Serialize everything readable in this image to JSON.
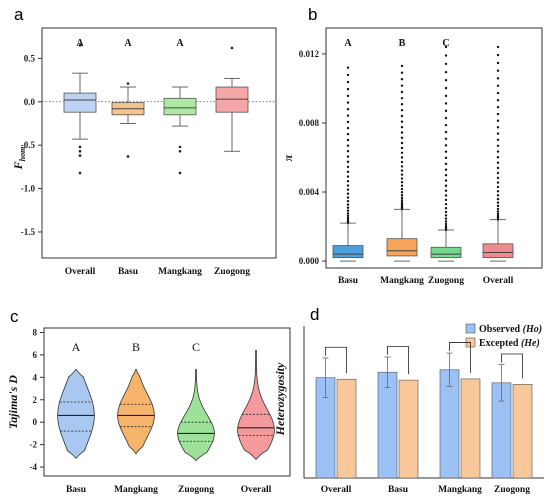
{
  "panels": [
    "a",
    "b",
    "c",
    "d"
  ],
  "chart_data": [
    {
      "panel": "a",
      "type": "box",
      "ylabel": "F",
      "ylabel_sub": "hom",
      "categories": [
        "Overall",
        "Basu",
        "Mangkang",
        "Zuogong"
      ],
      "colors": [
        "#bcd3f2",
        "#f6c48c",
        "#aee9a2",
        "#f5a7a8"
      ],
      "ylim": [
        -1.8,
        0.85
      ],
      "yticks": [
        0.5,
        0.0,
        -0.5,
        -1.0,
        -1.5
      ],
      "ytick_labels": [
        "0.5",
        "0.0",
        "-0.5",
        "-1.0",
        "-1.5"
      ],
      "reference_line": 0.0,
      "significance": [
        "A",
        "A",
        "A",
        ""
      ],
      "boxes": [
        {
          "min": -0.43,
          "q1": -0.12,
          "median": 0.02,
          "q3": 0.1,
          "max": 0.33,
          "outliers": [
            0.65,
            -0.52,
            -0.57,
            -0.62,
            -0.82
          ]
        },
        {
          "min": -0.25,
          "q1": -0.15,
          "median": -0.08,
          "q3": -0.01,
          "max": 0.17,
          "outliers": [
            0.21,
            -0.63
          ]
        },
        {
          "min": -0.28,
          "q1": -0.15,
          "median": -0.07,
          "q3": 0.04,
          "max": 0.17,
          "outliers": [
            -0.52,
            -0.57,
            -0.82
          ]
        },
        {
          "min": -0.57,
          "q1": -0.12,
          "median": 0.03,
          "q3": 0.17,
          "max": 0.27,
          "outliers": [
            0.62
          ]
        }
      ]
    },
    {
      "panel": "b",
      "type": "box",
      "ylabel": "π",
      "categories": [
        "Basu",
        "Mangkang",
        "Zuogong",
        "Overall"
      ],
      "colors": [
        "#4e9fe0",
        "#f6a55a",
        "#74d98c",
        "#f08a8c"
      ],
      "ylim": [
        -0.0004,
        0.0135
      ],
      "yticks": [
        0.0,
        0.004,
        0.008,
        0.012
      ],
      "ytick_labels": [
        "0.000",
        "0.004",
        "0.008",
        "0.012"
      ],
      "significance": [
        "A",
        "B",
        "C",
        ""
      ],
      "boxes": [
        {
          "min": 0.0,
          "q1": 0.0002,
          "median": 0.0004,
          "q3": 0.0009,
          "max": 0.0022,
          "outlier_top": 0.0112
        },
        {
          "min": 0.0,
          "q1": 0.0003,
          "median": 0.0006,
          "q3": 0.0013,
          "max": 0.003,
          "outlier_top": 0.0113
        },
        {
          "min": 0.0,
          "q1": 0.0002,
          "median": 0.0004,
          "q3": 0.0008,
          "max": 0.0018,
          "outlier_top": 0.0124
        },
        {
          "min": 0.0,
          "q1": 0.0002,
          "median": 0.0005,
          "q3": 0.001,
          "max": 0.0024,
          "outlier_top": 0.0124
        }
      ]
    },
    {
      "panel": "c",
      "type": "violin",
      "ylabel": "Tajima's D",
      "categories": [
        "Basu",
        "Mangkang",
        "Zuogong",
        "Overall"
      ],
      "colors": [
        "#a8c8f0",
        "#f6b36b",
        "#9ee29a",
        "#f49a9c"
      ],
      "ylim": [
        -4.8,
        8.4
      ],
      "yticks": [
        8,
        6,
        4,
        2,
        0,
        -2,
        -4
      ],
      "ytick_labels": [
        "8",
        "6",
        "4",
        "2",
        "0",
        "-2",
        "-4"
      ],
      "significance": [
        "A",
        "B",
        "C",
        ""
      ],
      "violins": [
        {
          "min": -3.2,
          "max": 4.7,
          "q1": -0.8,
          "median": 0.6,
          "q3": 1.8,
          "peak": 0.6
        },
        {
          "min": -2.8,
          "max": 4.7,
          "q1": -0.4,
          "median": 0.6,
          "q3": 1.6,
          "peak": 0.6
        },
        {
          "min": -3.4,
          "max": 4.7,
          "q1": -1.7,
          "median": -1.0,
          "q3": 0.0,
          "peak": -1.0
        },
        {
          "min": -3.3,
          "max": 6.4,
          "q1": -1.2,
          "median": -0.5,
          "q3": 0.7,
          "peak": -0.7
        }
      ]
    },
    {
      "panel": "d",
      "type": "bar",
      "ylabel": "Heterozygosity",
      "categories": [
        "Overall",
        "Basu",
        "Mangkang",
        "Zuogong"
      ],
      "ylim": [
        0,
        0.5
      ],
      "series": [
        {
          "name": "Observed",
          "name_suffix": "(Ho)",
          "color": "#9cc1f5",
          "values": [
            0.33,
            0.348,
            0.356,
            0.313
          ],
          "errors": [
            0.065,
            0.05,
            0.055,
            0.06
          ]
        },
        {
          "name": "Excepted",
          "name_suffix": "(He)",
          "color": "#f9c89a",
          "values": [
            0.325,
            0.322,
            0.326,
            0.308
          ],
          "errors": [
            0.0,
            0.0,
            0.0,
            0.0
          ]
        }
      ],
      "legend_position": "top-right",
      "grid": false
    }
  ]
}
